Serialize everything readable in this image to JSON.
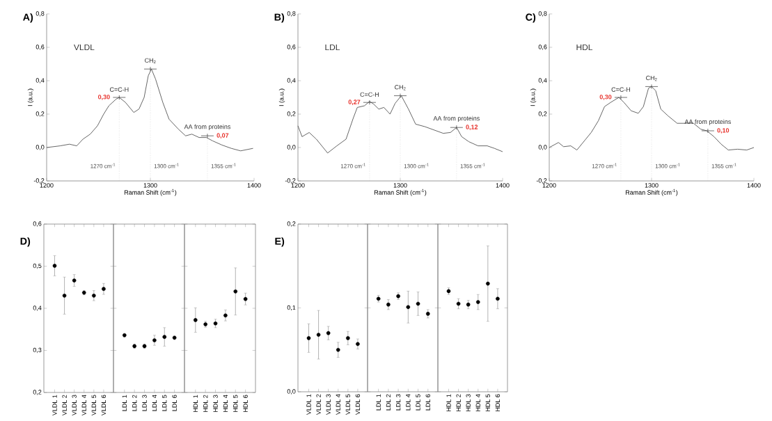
{
  "chart_data": [
    {
      "type": "line",
      "title": "A)",
      "xlabel": "Raman Shift (cm$^{-1}$)",
      "ylabel": "I (a.u.)",
      "xlim": [
        1200,
        1400
      ],
      "ylim": [
        -0.2,
        0.8
      ],
      "xticks": [
        1200,
        1300,
        1400
      ],
      "yticks": [
        {
          "value": -0.2,
          "label": "-0,2"
        },
        {
          "value": 0,
          "label": "0,0"
        },
        {
          "value": 0.2,
          "label": "0,2"
        },
        {
          "value": 0.4,
          "label": "0,4"
        },
        {
          "value": 0.6,
          "label": "0,6"
        },
        {
          "value": 0.8,
          "label": "0,8"
        }
      ],
      "color": "#555555",
      "x": [
        1200,
        1213,
        1222,
        1229,
        1235,
        1242,
        1249,
        1255,
        1260,
        1267,
        1270,
        1276,
        1284,
        1289,
        1294,
        1298,
        1301,
        1305,
        1312,
        1318,
        1327,
        1334,
        1340,
        1347,
        1354,
        1360,
        1369,
        1378,
        1387,
        1399
      ],
      "values": [
        0.0,
        0.01,
        0.02,
        0.01,
        0.05,
        0.08,
        0.13,
        0.2,
        0.25,
        0.29,
        0.3,
        0.27,
        0.21,
        0.23,
        0.3,
        0.43,
        0.47,
        0.41,
        0.27,
        0.17,
        0.11,
        0.07,
        0.08,
        0.06,
        0.06,
        0.04,
        0.015,
        -0.005,
        -0.02,
        -0.005
      ],
      "ref_lines": [
        {
          "axis": "x",
          "value": 1270,
          "label": "1270 cm$^{-1}$",
          "color": "#bbbbbb",
          "line_style": "dotted"
        },
        {
          "axis": "x",
          "value": 1300,
          "label": "1300 cm$^{-1}$",
          "color": "#bbbbbb",
          "line_style": "dotted"
        },
        {
          "axis": "x",
          "value": 1355,
          "label": "1355 cm$^{-1}$",
          "color": "#bbbbbb",
          "line_style": "dotted"
        }
      ],
      "annotations": [
        "VLDL",
        {
          "text": "C=C-H",
          "x": 1270,
          "y": 0.3
        },
        {
          "text": "CH$_{2}$",
          "x": 1300,
          "y": 0.47
        },
        {
          "text": "AA from proteins",
          "x": 1355,
          "y": 0.07
        },
        {
          "text": "0,30",
          "x": 1270,
          "y": 0.3
        },
        {
          "text": "0,07",
          "x": 1355,
          "y": 0.07
        }
      ]
    },
    {
      "type": "line",
      "title": "B)",
      "xlabel": "Raman Shift (cm$^{-1}$)",
      "ylabel": "I (a.u.)",
      "xlim": [
        1200,
        1400
      ],
      "ylim": [
        -0.2,
        0.8
      ],
      "xticks": [
        1200,
        1300,
        1400
      ],
      "yticks": [
        {
          "value": -0.2,
          "label": "-0,2"
        },
        {
          "value": 0,
          "label": "0,0"
        },
        {
          "value": 0.2,
          "label": "0,2"
        },
        {
          "value": 0.4,
          "label": "0,4"
        },
        {
          "value": 0.6,
          "label": "0,6"
        },
        {
          "value": 0.8,
          "label": "0,8"
        }
      ],
      "color": "#555555",
      "x": [
        1200,
        1204,
        1211,
        1218,
        1229,
        1238,
        1247,
        1254,
        1258,
        1265,
        1270,
        1274,
        1279,
        1284,
        1290,
        1295,
        1301,
        1308,
        1315,
        1324,
        1333,
        1342,
        1349,
        1355,
        1360,
        1367,
        1376,
        1385,
        1392,
        1400
      ],
      "values": [
        0.13,
        0.065,
        0.09,
        0.05,
        -0.033,
        0.01,
        0.05,
        0.175,
        0.24,
        0.25,
        0.276,
        0.26,
        0.23,
        0.24,
        0.2,
        0.265,
        0.31,
        0.23,
        0.14,
        0.125,
        0.105,
        0.085,
        0.09,
        0.12,
        0.065,
        0.035,
        0.01,
        0.01,
        -0.005,
        -0.025
      ],
      "ref_lines": [
        {
          "axis": "x",
          "value": 1270,
          "label": "1270 cm$^{-1}$",
          "color": "#bbbbbb",
          "line_style": "dotted"
        },
        {
          "axis": "x",
          "value": 1300,
          "label": "1300 cm$^{-1}$",
          "color": "#bbbbbb",
          "line_style": "dotted"
        },
        {
          "axis": "x",
          "value": 1355,
          "label": "1355 cm$^{-1}$",
          "color": "#bbbbbb",
          "line_style": "dotted"
        }
      ],
      "annotations": [
        "LDL",
        {
          "text": "C=C-H",
          "x": 1270,
          "y": 0.27
        },
        {
          "text": "CH$_{2}$",
          "x": 1300,
          "y": 0.31
        },
        {
          "text": "AA from proteins",
          "x": 1355,
          "y": 0.12
        },
        {
          "text": "0,27",
          "x": 1270,
          "y": 0.27
        },
        {
          "text": "0,12",
          "x": 1355,
          "y": 0.12
        }
      ]
    },
    {
      "type": "line",
      "title": "C)",
      "xlabel": "Raman Shift (cm$^{-1}$)",
      "ylabel": "I (a.u.)",
      "xlim": [
        1200,
        1400
      ],
      "ylim": [
        -0.2,
        0.8
      ],
      "xticks": [
        1200,
        1300,
        1400
      ],
      "yticks": [
        {
          "value": -0.2,
          "label": "-0,2"
        },
        {
          "value": 0,
          "label": "0,0"
        },
        {
          "value": 0.2,
          "label": "0,2"
        },
        {
          "value": 0.4,
          "label": "0,4"
        },
        {
          "value": 0.6,
          "label": "0,6"
        },
        {
          "value": 0.8,
          "label": "0,8"
        }
      ],
      "color": "#555555",
      "x": [
        1200,
        1209,
        1214,
        1221,
        1227,
        1235,
        1241,
        1248,
        1254,
        1260,
        1268,
        1273,
        1280,
        1287,
        1292,
        1297,
        1300,
        1304,
        1309,
        1316,
        1325,
        1334,
        1341,
        1348,
        1354,
        1361,
        1368,
        1375,
        1384,
        1393,
        1400
      ],
      "values": [
        0.0,
        0.03,
        0.005,
        0.01,
        -0.015,
        0.045,
        0.09,
        0.16,
        0.245,
        0.27,
        0.3,
        0.27,
        0.22,
        0.205,
        0.245,
        0.355,
        0.365,
        0.34,
        0.23,
        0.19,
        0.145,
        0.145,
        0.145,
        0.11,
        0.1,
        0.065,
        0.02,
        -0.015,
        -0.01,
        -0.015,
        0.0
      ],
      "ref_lines": [
        {
          "axis": "x",
          "value": 1270,
          "label": "1270 cm$^{-1}$",
          "color": "#bbbbbb",
          "line_style": "dotted"
        },
        {
          "axis": "x",
          "value": 1300,
          "label": "1300 cm$^{-1}$",
          "color": "#bbbbbb",
          "line_style": "dotted"
        },
        {
          "axis": "x",
          "value": 1355,
          "label": "1355 cm$^{-1}$",
          "color": "#bbbbbb",
          "line_style": "dotted"
        }
      ],
      "annotations": [
        "HDL",
        {
          "text": "C=C-H",
          "x": 1270,
          "y": 0.3
        },
        {
          "text": "CH$_{2}$",
          "x": 1300,
          "y": 0.365
        },
        {
          "text": "AA from proteins",
          "x": 1355,
          "y": 0.1
        },
        {
          "text": "0,30",
          "x": 1270,
          "y": 0.3
        },
        {
          "text": "0,10",
          "x": 1355,
          "y": 0.1
        }
      ]
    },
    {
      "type": "scatter",
      "title": "D)",
      "marker": "circle",
      "color": "#000000",
      "ylim": [
        0.2,
        0.6
      ],
      "yticks": [
        {
          "value": 0.2,
          "label": "0,2"
        },
        {
          "value": 0.3,
          "label": "0,3"
        },
        {
          "value": 0.4,
          "label": "0,4"
        },
        {
          "value": 0.5,
          "label": "0,5"
        },
        {
          "value": 0.6,
          "label": "0,6"
        }
      ],
      "categories": [
        "VLDL 1",
        "VLDL 2",
        "VLDL 3",
        "VLDL 4",
        "VLDL 5",
        "VLDL 6"
      ],
      "values": [
        0.501,
        0.43,
        0.466,
        0.437,
        0.43,
        0.446
      ],
      "errors": [
        0.024,
        0.044,
        0.014,
        0.005,
        0.012,
        0.013
      ]
    },
    {
      "type": "scatter",
      "marker": "circle",
      "color": "#000000",
      "tick_labels": "x",
      "ylim": [
        0.2,
        0.6
      ],
      "yticks": [
        0.2,
        0.3,
        0.4,
        0.5,
        0.6
      ],
      "categories": [
        "LDL 1",
        "LDL 2",
        "LDL 3",
        "LDL 4",
        "LDL 5",
        "LDL 6"
      ],
      "values": [
        0.336,
        0.31,
        0.31,
        0.324,
        0.332,
        0.33
      ],
      "errors": [
        0.004,
        0.005,
        0.005,
        0.012,
        0.022,
        0.004
      ]
    },
    {
      "type": "scatter",
      "marker": "circle",
      "color": "#000000",
      "tick_labels": "x",
      "ylim": [
        0.2,
        0.6
      ],
      "yticks": [
        0.2,
        0.3,
        0.4,
        0.5,
        0.6
      ],
      "categories": [
        "HDL 1",
        "HDL 2",
        "HDL 3",
        "HDL 4",
        "HDL 5",
        "HDL 6"
      ],
      "values": [
        0.372,
        0.362,
        0.364,
        0.383,
        0.44,
        0.422
      ],
      "errors": [
        0.029,
        0.007,
        0.01,
        0.013,
        0.056,
        0.014
      ]
    },
    {
      "type": "scatter",
      "title": "E)",
      "marker": "circle",
      "color": "#000000",
      "ylim": [
        0,
        0.2
      ],
      "yticks": [
        {
          "value": 0,
          "label": "0,0"
        },
        {
          "value": 0.1,
          "label": "0,1"
        },
        {
          "value": 0.2,
          "label": "0,2"
        }
      ],
      "categories": [
        "VLDL 1",
        "VLDL 2",
        "VLDL 3",
        "VLDL 4",
        "VLDL 5",
        "VLDL 6"
      ],
      "values": [
        0.064,
        0.068,
        0.07,
        0.05,
        0.064,
        0.057
      ],
      "errors": [
        0.017,
        0.029,
        0.008,
        0.009,
        0.008,
        0.006
      ]
    },
    {
      "type": "scatter",
      "marker": "circle",
      "color": "#000000",
      "tick_labels": "x",
      "ylim": [
        0,
        0.2
      ],
      "yticks": [
        0,
        0.1,
        0.2
      ],
      "categories": [
        "LDL 1",
        "LDL 2",
        "LDL 3",
        "LDL 4",
        "LDL 5",
        "LDL 6"
      ],
      "values": [
        0.111,
        0.104,
        0.114,
        0.101,
        0.105,
        0.093
      ],
      "errors": [
        0.004,
        0.006,
        0.004,
        0.019,
        0.014,
        0.005
      ]
    },
    {
      "type": "scatter",
      "marker": "circle",
      "color": "#000000",
      "tick_labels": "x",
      "ylim": [
        0,
        0.2
      ],
      "yticks": [
        0,
        0.1,
        0.2
      ],
      "categories": [
        "HDL 1",
        "HDL 2",
        "HDL 3",
        "HDL 4",
        "HDL 5",
        "HDL 6"
      ],
      "values": [
        0.12,
        0.105,
        0.104,
        0.107,
        0.129,
        0.111
      ],
      "errors": [
        0.004,
        0.006,
        0.005,
        0.009,
        0.045,
        0.012
      ]
    }
  ]
}
